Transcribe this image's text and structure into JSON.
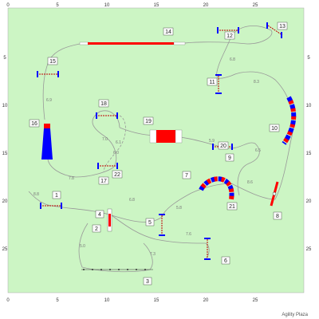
{
  "field": {
    "background": "#ccf5c4",
    "grid_ticks": [
      "0",
      "5",
      "10",
      "15",
      "20",
      "25"
    ]
  },
  "colors": {
    "path": "#999999",
    "tunnel": "#0000ff",
    "bar_red": "#ff0000",
    "bar_blue": "#0000ff",
    "label_box": "#ffffff"
  },
  "obstacles": [
    {
      "n": "1"
    },
    {
      "n": "2"
    },
    {
      "n": "3"
    },
    {
      "n": "4"
    },
    {
      "n": "5"
    },
    {
      "n": "6"
    },
    {
      "n": "7"
    },
    {
      "n": "8"
    },
    {
      "n": "9"
    },
    {
      "n": "10"
    },
    {
      "n": "11"
    },
    {
      "n": "12"
    },
    {
      "n": "13"
    },
    {
      "n": "14"
    },
    {
      "n": "15"
    },
    {
      "n": "16"
    },
    {
      "n": "17"
    },
    {
      "n": "18"
    },
    {
      "n": "19"
    },
    {
      "n": "20"
    },
    {
      "n": "21"
    },
    {
      "n": "22"
    }
  ],
  "distances": [
    "8.8",
    "7.8",
    "6.9",
    "7.0",
    "7.3",
    "6.1",
    "5.8",
    "7.6",
    "6.8",
    "8.6",
    "5.9",
    "6.8",
    "8.3",
    "6.5",
    "5.0",
    "6.0"
  ],
  "credit": "Agility Plaza"
}
